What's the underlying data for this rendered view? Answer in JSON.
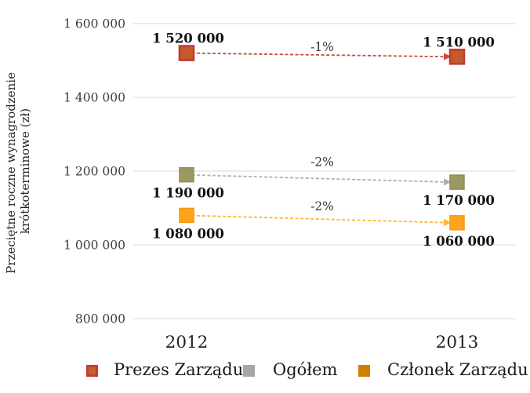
{
  "y_axis": {
    "line1": "Przeciętne roczne wynagrodzenie",
    "line2": "krótkoterminowe (zł)"
  },
  "chart_data": {
    "type": "line",
    "title": "",
    "ylabel": "Przeciętne roczne wynagrodzenie krótkoterminowe (zł)",
    "xlabel": "",
    "categories": [
      "2012",
      "2013"
    ],
    "series": [
      {
        "name": "Prezes Zarządu",
        "values": [
          1520000,
          1510000
        ],
        "labels": [
          "1 520 000",
          "1 510 000"
        ],
        "change": "-1%",
        "label_position": "above",
        "line_color": "#C84A40",
        "marker_fill": "#C25A2D",
        "marker_border": "#C53B31"
      },
      {
        "name": "Ogółem",
        "values": [
          1190000,
          1170000
        ],
        "labels": [
          "1 190 000",
          "1 170 000"
        ],
        "change": "-2%",
        "label_position": "below",
        "line_color": "#AFAFAF",
        "marker_fill": "#9C9864",
        "marker_border": "#908C58"
      },
      {
        "name": "Członek Zarządu",
        "values": [
          1080000,
          1060000
        ],
        "labels": [
          "1 080 000",
          "1 060 000"
        ],
        "change": "-2%",
        "label_position": "below",
        "line_color": "#FFB62E",
        "marker_fill": "#FFA31F",
        "marker_border": "#F6990E"
      }
    ],
    "yticks": [
      1600000,
      1400000,
      1200000,
      1000000,
      800000
    ],
    "ytick_labels": [
      "1 600 000",
      "1 400 000",
      "1 200 000",
      "1 000 000",
      "800 000"
    ],
    "ylim": [
      800000,
      1600000
    ],
    "grid": true,
    "line_style": "dashed-with-arrowhead",
    "legend_position": "bottom"
  },
  "legend": {
    "items": [
      {
        "label": "Prezes Zarządu",
        "fill": "#C3622E",
        "border": "#C53B31"
      },
      {
        "label": "Ogółem",
        "fill": "#A6A6A6",
        "border": "#A6A6A6"
      },
      {
        "label": "Członek Zarządu",
        "fill": "#D07D00",
        "border": "#D07D00"
      }
    ]
  }
}
